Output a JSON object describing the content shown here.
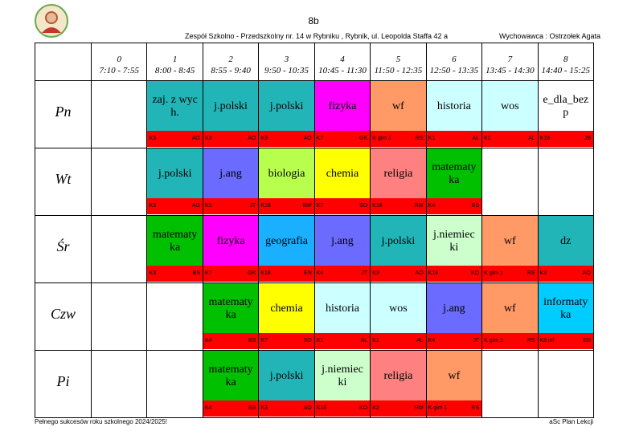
{
  "header": {
    "class": "8b",
    "school": "Zespół Szkolno - Przedszkolny nr. 14 w Rybniku  , Rybnik, ul. Leopolda Staffa 42 a",
    "teacher": "Wychowawca : Ostrzołek Agata"
  },
  "periods": [
    {
      "num": "0",
      "time": "7:10 - 7:55"
    },
    {
      "num": "1",
      "time": "8:00 - 8:45"
    },
    {
      "num": "2",
      "time": "8:55 - 9:40"
    },
    {
      "num": "3",
      "time": "9:50 - 10:35"
    },
    {
      "num": "4",
      "time": "10:45 - 11:30"
    },
    {
      "num": "5",
      "time": "11:50 - 12:35"
    },
    {
      "num": "6",
      "time": "12:50 - 13:35"
    },
    {
      "num": "7",
      "time": "13:45 - 14:30"
    },
    {
      "num": "8",
      "time": "14:40 - 15:25"
    }
  ],
  "days": [
    {
      "name": "Pn",
      "lessons": [
        null,
        {
          "subject": "zaj. z wych.",
          "room": "K3",
          "teacher": "AO",
          "color": "#22b5b8"
        },
        {
          "subject": "j.polski",
          "room": "K3",
          "teacher": "AO",
          "color": "#22b5b8"
        },
        {
          "subject": "j.polski",
          "room": "K3",
          "teacher": "AO",
          "color": "#22b5b8"
        },
        {
          "subject": "fizyka",
          "room": "K7",
          "teacher": "GK",
          "color": "#ff00ff"
        },
        {
          "subject": "wf",
          "room": "K gim 1",
          "teacher": "RS",
          "color": "#ff9966"
        },
        {
          "subject": "historia",
          "room": "K1",
          "teacher": "AL",
          "color": "#ccffff"
        },
        {
          "subject": "wos",
          "room": "K1",
          "teacher": "AL",
          "color": "#ccffff"
        },
        {
          "subject": "e_dla_bezp",
          "room": "K18",
          "teacher": "JB",
          "color": "#ffffff"
        }
      ]
    },
    {
      "name": "Wt",
      "lessons": [
        null,
        {
          "subject": "j.polski",
          "room": "K3",
          "teacher": "AO",
          "color": "#22b5b8"
        },
        {
          "subject": "j.ang",
          "room": "K5",
          "teacher": "JT",
          "color": "#6b6bff"
        },
        {
          "subject": "biologia",
          "room": "K18",
          "teacher": "BW",
          "color": "#b8ff4d"
        },
        {
          "subject": "chemia",
          "room": "K7",
          "teacher": "SO",
          "color": "#ffff00"
        },
        {
          "subject": "religia",
          "room": "K18",
          "teacher": "RM",
          "color": "#ff8080"
        },
        {
          "subject": "matematyka",
          "room": "K4",
          "teacher": "BS",
          "color": "#00c000"
        },
        null,
        null
      ]
    },
    {
      "name": "Śr",
      "lessons": [
        null,
        {
          "subject": "matematyka",
          "room": "K3",
          "teacher": "BS",
          "color": "#00c000"
        },
        {
          "subject": "fizyka",
          "room": "K7",
          "teacher": "GK",
          "color": "#ff00ff"
        },
        {
          "subject": "geografia",
          "room": "K18",
          "teacher": "EN",
          "color": "#1ab0ff"
        },
        {
          "subject": "j.ang",
          "room": "K4",
          "teacher": "JT",
          "color": "#6b6bff"
        },
        {
          "subject": "j.polski",
          "room": "K3",
          "teacher": "AO",
          "color": "#22b5b8"
        },
        {
          "subject": "j.niemiecki",
          "room": "K18",
          "teacher": "KO",
          "color": "#ccffcc"
        },
        {
          "subject": "wf",
          "room": "K gim 1",
          "teacher": "RS",
          "color": "#ff9966"
        },
        {
          "subject": "dz",
          "room": "K3",
          "teacher": "AO",
          "color": "#22b5b8"
        }
      ]
    },
    {
      "name": "Czw",
      "lessons": [
        null,
        null,
        {
          "subject": "matematyka",
          "room": "K4",
          "teacher": "BS",
          "color": "#00c000"
        },
        {
          "subject": "chemia",
          "room": "K7",
          "teacher": "SO",
          "color": "#ffff00"
        },
        {
          "subject": "historia",
          "room": "K1",
          "teacher": "AL",
          "color": "#ccffff"
        },
        {
          "subject": "wos",
          "room": "K1",
          "teacher": "AL",
          "color": "#ccffff"
        },
        {
          "subject": "j.ang",
          "room": "K4",
          "teacher": "JT",
          "color": "#6b6bff"
        },
        {
          "subject": "wf",
          "room": "K gim 1",
          "teacher": "RS",
          "color": "#ff9966"
        },
        {
          "subject": "informatyka",
          "room": "K8 inf",
          "teacher": "EN",
          "color": "#00ccff"
        }
      ]
    },
    {
      "name": "Pi",
      "lessons": [
        null,
        null,
        {
          "subject": "matematyka",
          "room": "K4",
          "teacher": "BS",
          "color": "#00c000"
        },
        {
          "subject": "j.polski",
          "room": "K3",
          "teacher": "AO",
          "color": "#22b5b8"
        },
        {
          "subject": "j.niemiecki",
          "room": "K18",
          "teacher": "KO",
          "color": "#ccffcc"
        },
        {
          "subject": "religia",
          "room": "K2",
          "teacher": "RM",
          "color": "#ff8080"
        },
        {
          "subject": "wf",
          "room": "K gim 1",
          "teacher": "RS",
          "color": "#ff9966"
        },
        null,
        null
      ]
    }
  ],
  "footer": {
    "left": "Pełnego sukcesów roku szkolnego 2024/2025!",
    "right": "aSc Plan Lekcji"
  }
}
